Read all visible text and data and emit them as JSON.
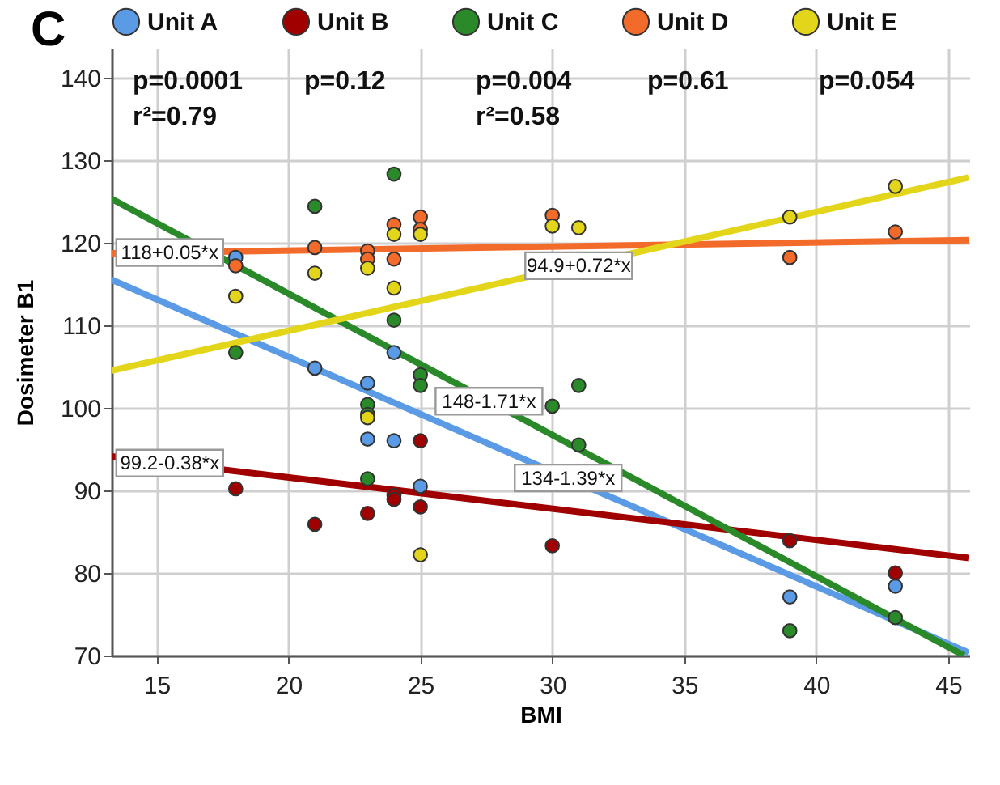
{
  "chart_data": {
    "type": "scatter",
    "title": "C",
    "xlabel": "BMI",
    "ylabel": "Dosimeter B1",
    "xlim": [
      13.3,
      45.8
    ],
    "ylim": [
      70,
      143.5
    ],
    "xticks": [
      15,
      20,
      25,
      30,
      35,
      40,
      45
    ],
    "yticks": [
      70,
      80,
      90,
      100,
      110,
      120,
      130,
      140
    ],
    "grid": true,
    "legend": "top",
    "marker": "circle",
    "series": [
      {
        "name": "Unit A",
        "color": "#5b9be6",
        "type": "scatter",
        "x": [
          18,
          21,
          23,
          23,
          24,
          24,
          25,
          39,
          43
        ],
        "values": [
          118.2,
          104.8,
          103,
          96.2,
          106.7,
          96,
          90.5,
          77.1,
          78.4
        ]
      },
      {
        "name": "Unit B",
        "color": "#a00000",
        "type": "scatter",
        "x": [
          18,
          21,
          23,
          24,
          24,
          25,
          25,
          30,
          39,
          43
        ],
        "values": [
          90.2,
          85.9,
          87.2,
          89.4,
          88.9,
          96,
          88,
          83.3,
          83.9,
          80
        ]
      },
      {
        "name": "Unit C",
        "color": "#2a8a2a",
        "type": "scatter",
        "x": [
          18,
          21,
          23,
          23,
          23,
          24,
          24,
          25,
          25,
          30,
          31,
          31,
          39,
          43
        ],
        "values": [
          106.7,
          124.4,
          100.4,
          99.2,
          91.4,
          128.3,
          110.6,
          104,
          102.7,
          100.2,
          102.7,
          95.5,
          73,
          74.6
        ]
      },
      {
        "name": "Unit D",
        "color": "#f36b2b",
        "type": "scatter",
        "x": [
          18,
          21,
          23,
          23,
          24,
          24,
          25,
          25,
          30,
          39,
          43
        ],
        "values": [
          117.2,
          119.4,
          119,
          118,
          122.2,
          118,
          123.1,
          121.6,
          123.3,
          118.2,
          121.3
        ]
      },
      {
        "name": "Unit E",
        "color": "#e3d61a",
        "type": "scatter",
        "x": [
          18,
          21,
          23,
          23,
          24,
          24,
          25,
          25,
          30,
          31,
          39,
          43
        ],
        "values": [
          113.5,
          116.3,
          116.9,
          98.8,
          121,
          114.5,
          121,
          82.2,
          122,
          121.8,
          123.1,
          126.8
        ]
      },
      {
        "color": "#5b9be6",
        "type": "line",
        "marker": "none",
        "x": [
          13.3,
          45.8
        ],
        "values": [
          115.5,
          70.3
        ]
      },
      {
        "color": "#a00000",
        "type": "line",
        "marker": "none",
        "x": [
          13.3,
          45.8
        ],
        "values": [
          94.1,
          81.8
        ]
      },
      {
        "color": "#2a8a2a",
        "type": "line",
        "marker": "none",
        "x": [
          13.3,
          45.6
        ],
        "values": [
          125.3,
          70
        ]
      },
      {
        "color": "#f36b2b",
        "type": "line",
        "marker": "none",
        "x": [
          13.3,
          45.8
        ],
        "values": [
          118.7,
          120.3
        ]
      },
      {
        "color": "#e3d61a",
        "type": "line",
        "marker": "none",
        "x": [
          13.3,
          45.8
        ],
        "values": [
          104.5,
          127.9
        ]
      }
    ],
    "annotations": [
      "p=0.0001\nr²=0.79",
      "p=0.12",
      "p=0.004\nr²=0.58",
      "p=0.61",
      "p=0.054",
      {
        "text": "118+0.05*x",
        "x": 15.5,
        "y": 118.8
      },
      {
        "text": "99.2-0.38*x",
        "x": 15.5,
        "y": 93.3
      },
      {
        "text": "94.9+0.72*x",
        "x": 31,
        "y": 117.2
      },
      {
        "text": "148-1.71*x",
        "x": 27.6,
        "y": 100.8
      },
      {
        "text": "134-1.39*x",
        "x": 30.6,
        "y": 91.5
      }
    ]
  }
}
